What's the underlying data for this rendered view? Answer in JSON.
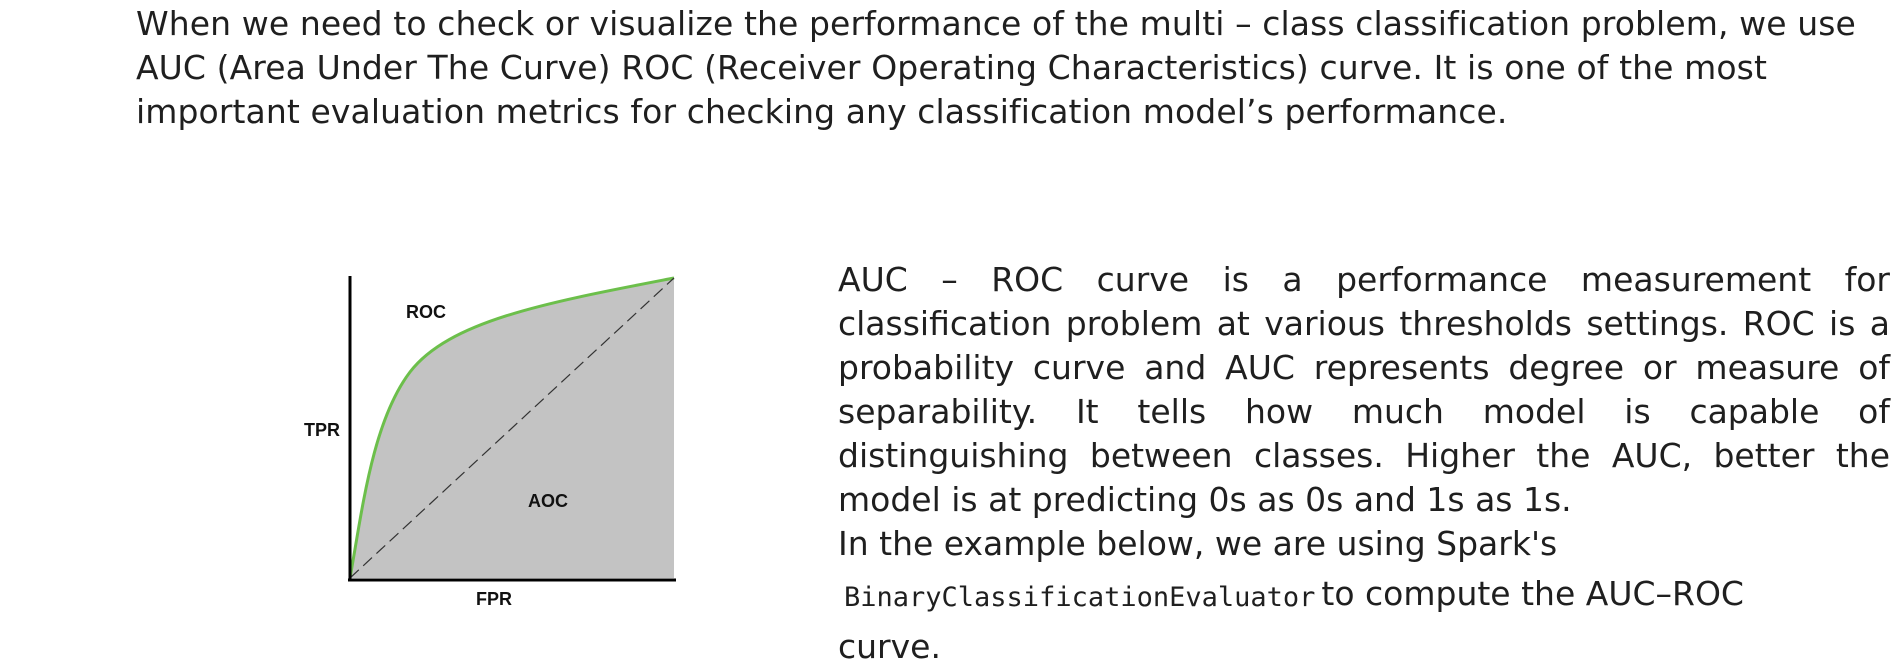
{
  "intro": {
    "text": "When we need to check or visualize the performance of the multi – class classification problem, we use AUC (Area Under The Curve) ROC (Receiver Operating Characteristics) curve. It is one of the most important evaluation metrics for checking any classification model’s performance."
  },
  "figure": {
    "y_axis_label": "TPR",
    "x_axis_label": "FPR",
    "curve_label": "ROC",
    "area_label": "AOC",
    "colors": {
      "curve": "#6cbf4b",
      "area": "#c3c3c3",
      "axis": "#000000",
      "diagonal": "#333333"
    }
  },
  "description": {
    "paragraph": "AUC – ROC curve is a performance measurement for classification problem at various thresholds settings. ROC is a probability curve and AUC represents degree or measure of separability. It tells how much model is capable of distinguishing between classes. Higher the AUC, better the model is at predicting 0s as 0s and 1s as 1s.",
    "example_prefix": "In the example below, we are using Spark's",
    "example_code": "BinaryClassificationEvaluator",
    "example_suffix": "to compute the AUC–ROC",
    "example_tail": "curve."
  }
}
